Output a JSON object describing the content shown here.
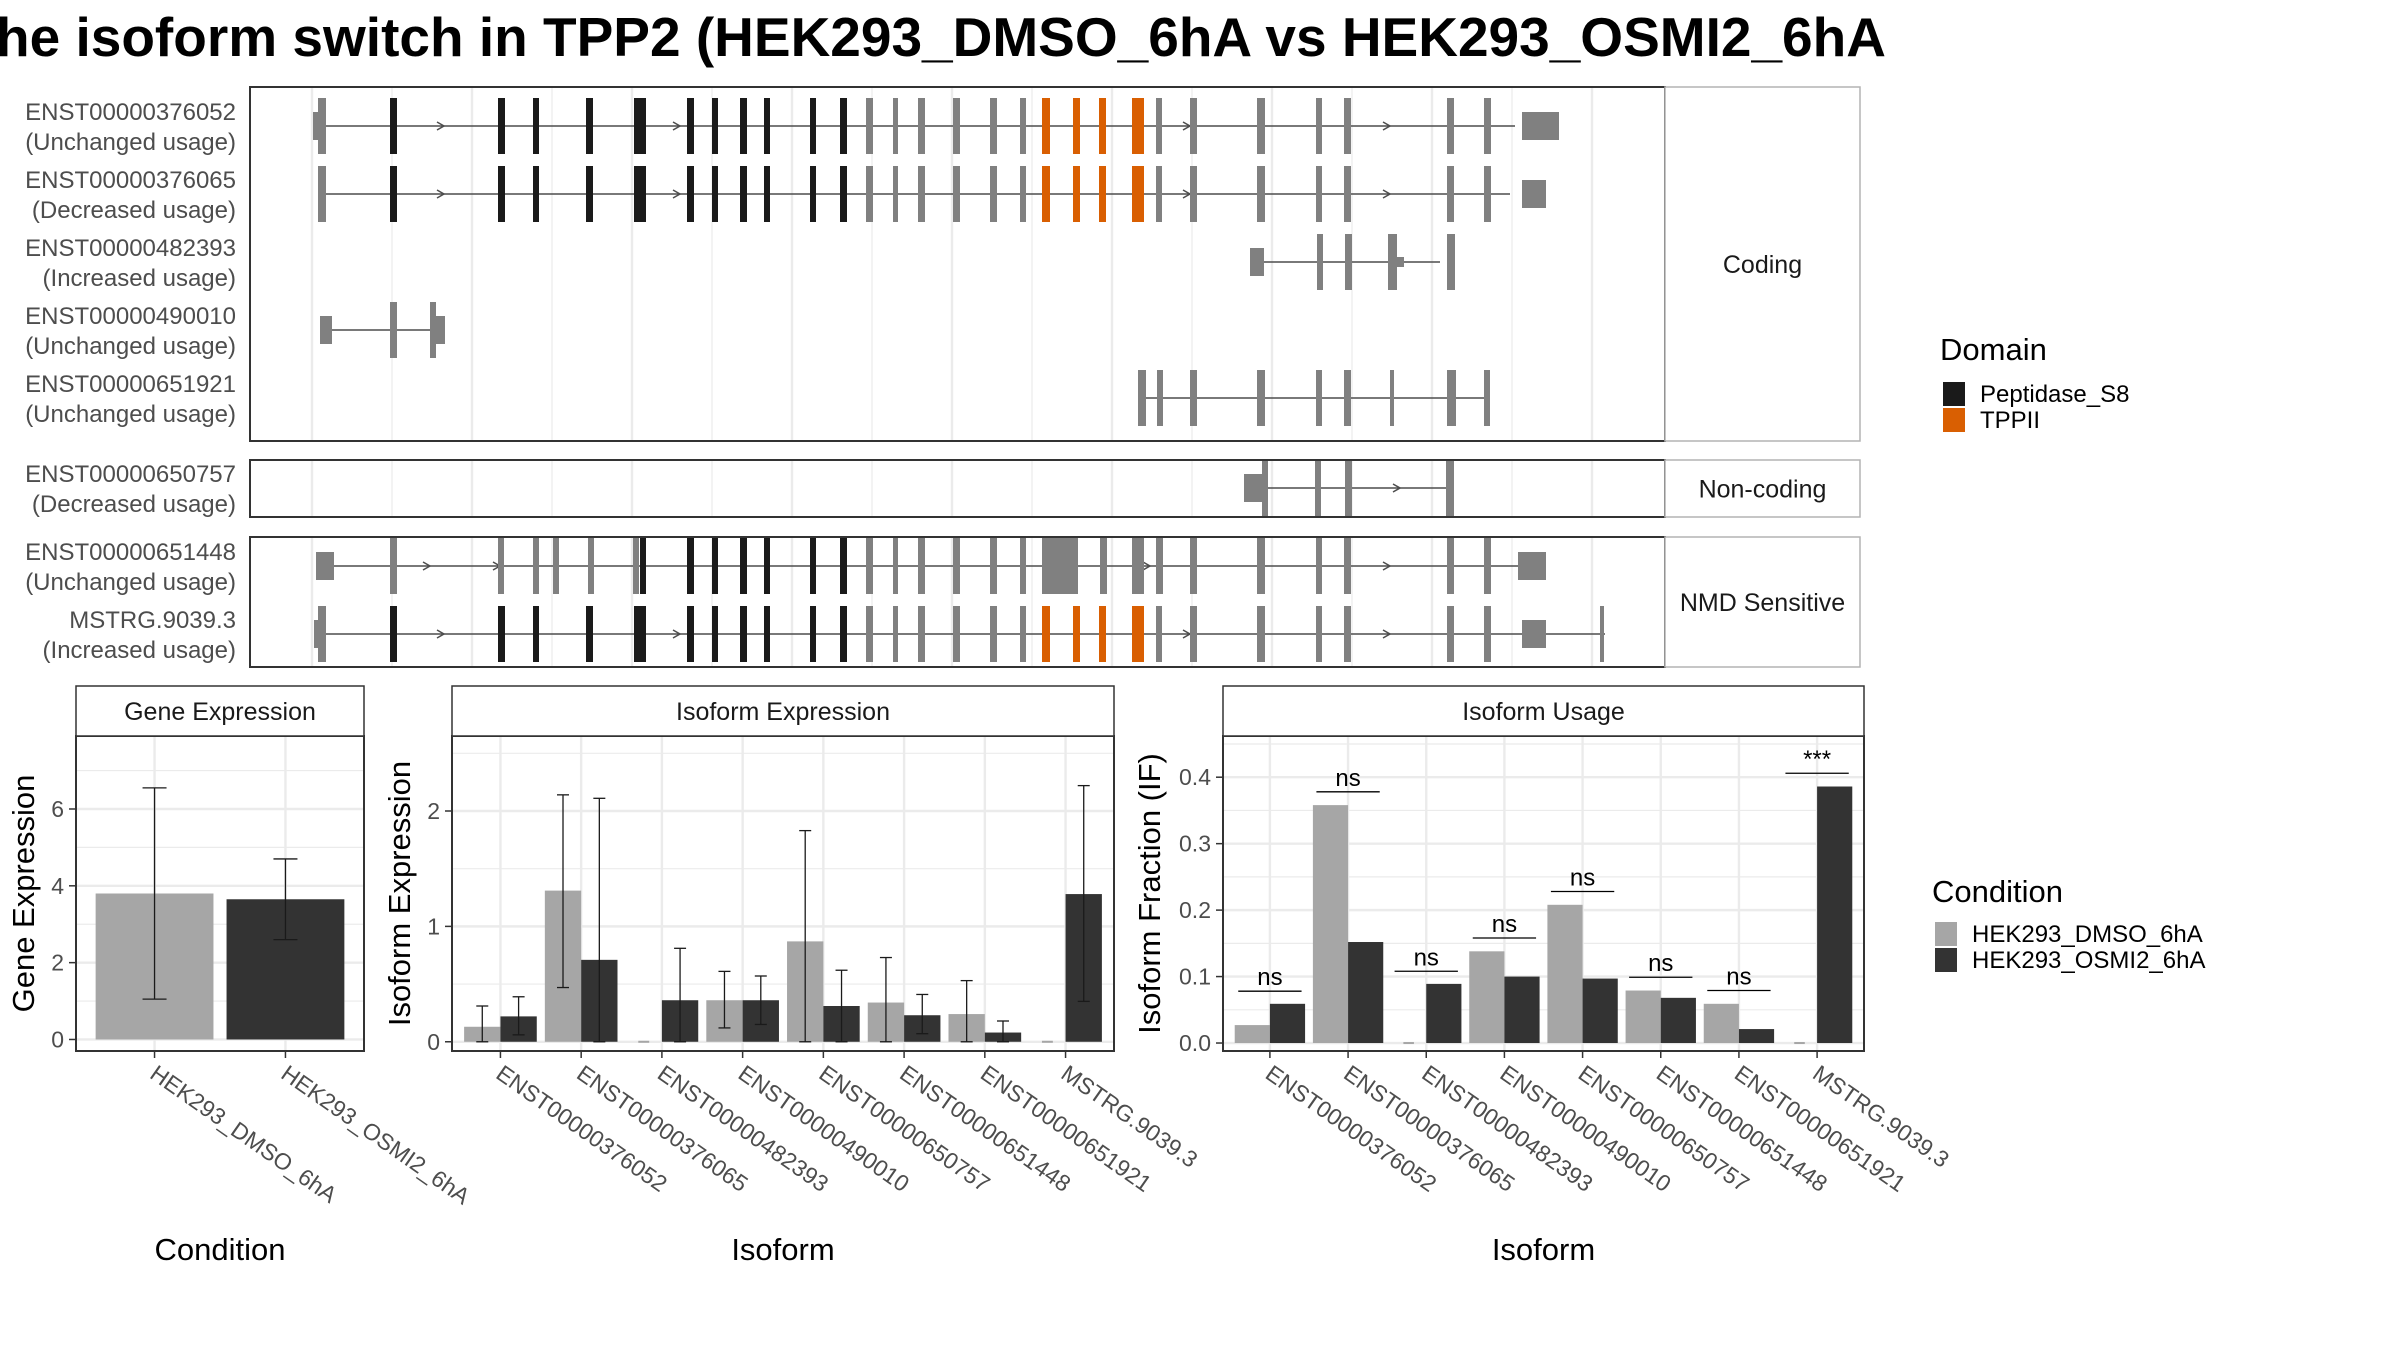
{
  "title": "he isoform switch in TPP2 (HEK293_DMSO_6hA vs HEK293_OSMI2_6hA",
  "colors": {
    "coding_exon": "#808080",
    "peptidase_s8": "#1a1a1a",
    "tppii": "#d95f02",
    "dmso": "#a6a6a6",
    "osmi2": "#333333",
    "grid": "#ebebeb",
    "panel_border": "#333333",
    "strip_border": "#b3b3b3"
  },
  "structure": {
    "groups": [
      {
        "label": "Coding",
        "transcripts": [
          {
            "id": "ENST00000376052",
            "usage": "(Unchanged usage)"
          },
          {
            "id": "ENST00000376065",
            "usage": "(Decreased usage)"
          },
          {
            "id": "ENST00000482393",
            "usage": "(Increased usage)"
          },
          {
            "id": "ENST00000490010",
            "usage": "(Unchanged usage)"
          },
          {
            "id": "ENST00000651921",
            "usage": "(Unchanged usage)"
          }
        ]
      },
      {
        "label": "Non-coding",
        "transcripts": [
          {
            "id": "ENST00000650757",
            "usage": "(Decreased usage)"
          }
        ]
      },
      {
        "label": "NMD Sensitive",
        "transcripts": [
          {
            "id": "ENST00000651448",
            "usage": "(Unchanged usage)"
          },
          {
            "id": "MSTRG.9039.3",
            "usage": "(Increased usage)"
          }
        ]
      }
    ]
  },
  "legend_domain": {
    "title": "Domain",
    "items": [
      {
        "label": "Peptidase_S8",
        "color": "#1a1a1a"
      },
      {
        "label": "TPPII",
        "color": "#d95f02"
      }
    ]
  },
  "legend_condition": {
    "title": "Condition",
    "items": [
      {
        "label": "HEK293_DMSO_6hA",
        "color": "#a6a6a6"
      },
      {
        "label": "HEK293_OSMI2_6hA",
        "color": "#333333"
      }
    ]
  },
  "chart_data": [
    {
      "type": "bar",
      "title": "Gene Expression",
      "xlabel": "Condition",
      "ylabel": "Gene Expression",
      "ylim": [
        -0.3,
        7.9
      ],
      "yticks": [
        0,
        2,
        4,
        6
      ],
      "categories": [
        "HEK293_DMSO_6hA",
        "HEK293_OSMI2_6hA"
      ],
      "values": [
        3.8,
        3.65
      ],
      "error_low": [
        1.05,
        2.6
      ],
      "error_high": [
        6.55,
        4.7
      ]
    },
    {
      "type": "bar",
      "title": "Isoform Expression",
      "xlabel": "Isoform",
      "ylabel": "Isoform Expression",
      "ylim": [
        -0.08,
        2.65
      ],
      "yticks": [
        0,
        1,
        2
      ],
      "categories": [
        "ENST00000376052",
        "ENST00000376065",
        "ENST00000482393",
        "ENST00000490010",
        "ENST00000650757",
        "ENST00000651448",
        "ENST00000651921",
        "MSTRG.9039.3"
      ],
      "series": [
        {
          "name": "HEK293_DMSO_6hA",
          "values": [
            0.13,
            1.31,
            0.0,
            0.36,
            0.87,
            0.34,
            0.24,
            0.0
          ],
          "error_low": [
            0.0,
            0.47,
            0.0,
            0.12,
            0.0,
            0.0,
            0.0,
            0.0
          ],
          "error_high": [
            0.31,
            2.14,
            0.0,
            0.61,
            1.83,
            0.73,
            0.53,
            0.0
          ]
        },
        {
          "name": "HEK293_OSMI2_6hA",
          "values": [
            0.22,
            0.71,
            0.36,
            0.36,
            0.31,
            0.23,
            0.08,
            1.28
          ],
          "error_low": [
            0.06,
            0.0,
            0.0,
            0.15,
            0.0,
            0.07,
            0.0,
            0.35
          ],
          "error_high": [
            0.39,
            2.11,
            0.81,
            0.57,
            0.62,
            0.41,
            0.18,
            2.22
          ]
        }
      ]
    },
    {
      "type": "bar",
      "title": "Isoform Usage",
      "xlabel": "Isoform",
      "ylabel": "Isoform Fraction (IF)",
      "ylim": [
        -0.012,
        0.462
      ],
      "yticks": [
        0.0,
        0.1,
        0.2,
        0.3,
        0.4
      ],
      "ytick_labels": [
        "0.0",
        "0.1",
        "0.2",
        "0.3",
        "0.4"
      ],
      "categories": [
        "ENST00000376052",
        "ENST00000376065",
        "ENST00000482393",
        "ENST00000490010",
        "ENST00000650757",
        "ENST00000651448",
        "ENST00000651921",
        "MSTRG.9039.3"
      ],
      "series": [
        {
          "name": "HEK293_DMSO_6hA",
          "values": [
            0.027,
            0.358,
            0.0,
            0.138,
            0.208,
            0.079,
            0.059,
            0.0
          ]
        },
        {
          "name": "HEK293_OSMI2_6hA",
          "values": [
            0.059,
            0.152,
            0.089,
            0.1,
            0.097,
            0.068,
            0.021,
            0.386
          ]
        }
      ],
      "significance": [
        "ns",
        "ns",
        "ns",
        "ns",
        "ns",
        "ns",
        "ns",
        "***"
      ],
      "significance_y": [
        0.078,
        0.378,
        0.108,
        0.158,
        0.228,
        0.099,
        0.079,
        0.406
      ]
    }
  ]
}
